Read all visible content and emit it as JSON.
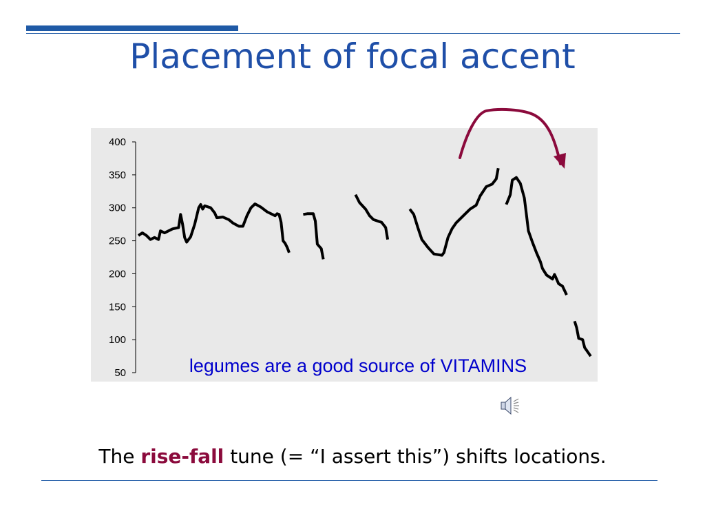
{
  "slide": {
    "title": "Placement of focal accent",
    "caption_pre": "The ",
    "caption_highlight": "rise-fall",
    "caption_post": " tune (= “I assert this”) shifts locations."
  },
  "colors": {
    "title": "#1f4fa8",
    "rule": "#1f5aa6",
    "highlight": "#8b0a3c",
    "plot_bg": "#e9e9e9",
    "annotation": "#0000cc",
    "arrow": "#8b0a3c"
  },
  "icons": {
    "audio": "speaker-icon"
  },
  "chart_data": {
    "type": "line",
    "ylim": [
      50,
      400
    ],
    "yticks": [
      50,
      100,
      150,
      200,
      250,
      300,
      350,
      400
    ],
    "annotation": "legumes are a good source of VITAMINS",
    "grid": false,
    "segments": [
      [
        [
          0,
          258
        ],
        [
          2,
          262
        ],
        [
          4,
          258
        ],
        [
          6,
          252
        ],
        [
          8,
          255
        ],
        [
          10,
          252
        ],
        [
          11,
          265
        ],
        [
          13,
          262
        ],
        [
          17,
          268
        ],
        [
          20,
          270
        ],
        [
          21,
          290
        ],
        [
          22,
          275
        ],
        [
          23,
          255
        ],
        [
          24,
          248
        ],
        [
          26,
          256
        ],
        [
          28,
          275
        ],
        [
          30,
          300
        ],
        [
          31,
          305
        ],
        [
          32,
          298
        ],
        [
          33,
          303
        ],
        [
          36,
          300
        ],
        [
          38,
          292
        ],
        [
          39,
          285
        ],
        [
          42,
          286
        ],
        [
          45,
          282
        ],
        [
          47,
          277
        ],
        [
          50,
          272
        ],
        [
          52,
          272
        ],
        [
          54,
          288
        ],
        [
          56,
          300
        ],
        [
          58,
          306
        ],
        [
          61,
          301
        ],
        [
          64,
          294
        ],
        [
          68,
          288
        ],
        [
          69,
          291
        ],
        [
          70,
          290
        ],
        [
          71,
          278
        ],
        [
          72,
          250
        ],
        [
          73,
          246
        ],
        [
          74,
          240
        ],
        [
          75,
          232
        ]
      ],
      [
        [
          82,
          290
        ],
        [
          84,
          291
        ],
        [
          87,
          291
        ],
        [
          88,
          280
        ],
        [
          89,
          245
        ],
        [
          91,
          238
        ],
        [
          92,
          222
        ]
      ],
      [
        [
          108,
          320
        ],
        [
          110,
          308
        ],
        [
          113,
          298
        ],
        [
          115,
          288
        ],
        [
          117,
          282
        ],
        [
          121,
          278
        ],
        [
          123,
          270
        ],
        [
          124,
          252
        ]
      ],
      [
        [
          135,
          298
        ],
        [
          137,
          290
        ],
        [
          139,
          270
        ],
        [
          141,
          252
        ],
        [
          144,
          240
        ],
        [
          147,
          230
        ],
        [
          151,
          228
        ],
        [
          152,
          232
        ],
        [
          154,
          255
        ],
        [
          156,
          268
        ],
        [
          158,
          277
        ],
        [
          162,
          289
        ],
        [
          165,
          298
        ],
        [
          168,
          304
        ],
        [
          170,
          318
        ],
        [
          173,
          332
        ],
        [
          176,
          336
        ],
        [
          178,
          344
        ],
        [
          179,
          360
        ]
      ],
      [
        [
          183,
          305
        ],
        [
          185,
          320
        ],
        [
          186,
          342
        ],
        [
          188,
          346
        ],
        [
          190,
          337
        ],
        [
          192,
          315
        ],
        [
          193,
          290
        ],
        [
          194,
          265
        ],
        [
          196,
          248
        ],
        [
          198,
          232
        ],
        [
          200,
          218
        ],
        [
          201,
          208
        ],
        [
          203,
          198
        ],
        [
          206,
          192
        ],
        [
          207,
          199
        ],
        [
          208,
          192
        ],
        [
          209,
          185
        ],
        [
          211,
          181
        ],
        [
          213,
          168
        ]
      ],
      [
        [
          217,
          128
        ],
        [
          218,
          118
        ],
        [
          219,
          102
        ],
        [
          221,
          100
        ],
        [
          222,
          88
        ],
        [
          225,
          75
        ]
      ]
    ]
  }
}
